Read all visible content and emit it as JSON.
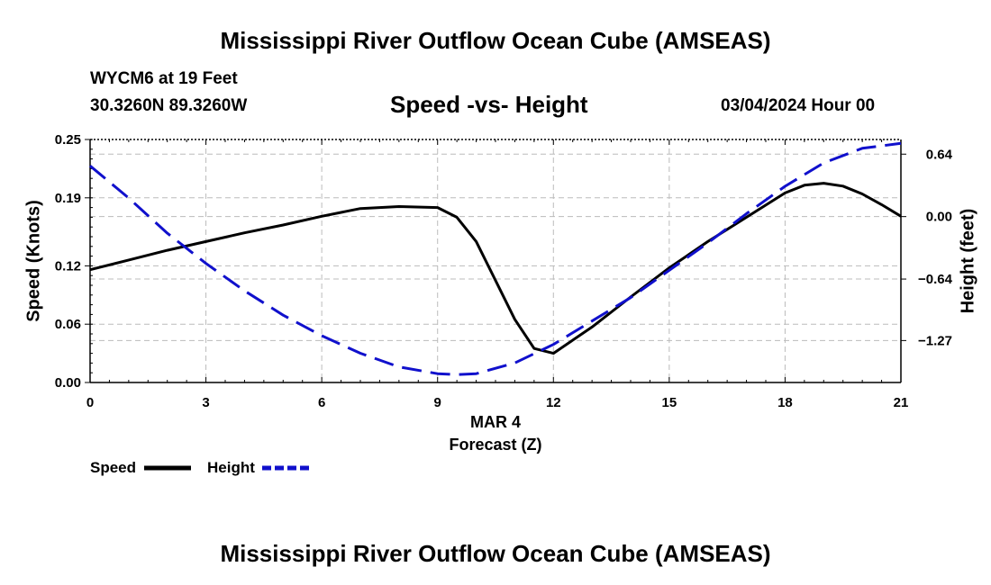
{
  "header": {
    "title": "Mississippi River Outflow Ocean Cube (AMSEAS)",
    "station": "WYCM6 at 19 Feet",
    "coords": "30.3260N  89.3260W",
    "subtitle": "Speed -vs- Height",
    "datetime": "03/04/2024 Hour 00"
  },
  "footer": {
    "title": "Mississippi River Outflow Ocean Cube (AMSEAS)"
  },
  "chart_data": {
    "type": "line",
    "title": "Speed -vs- Height",
    "xlabel_date": "MAR 4",
    "xlabel": "Forecast (Z)",
    "ylabel_left": "Speed (Knots)",
    "ylabel_right": "Height (feet)",
    "xlim": [
      0,
      21
    ],
    "ylim_left": [
      0,
      0.25
    ],
    "ylim_right": [
      -1.7,
      0.79
    ],
    "x_ticks": [
      "0",
      "3",
      "6",
      "9",
      "12",
      "15",
      "18",
      "21"
    ],
    "y_left_ticks": [
      "0.00",
      "0.06",
      "0.12",
      "0.19",
      "0.25"
    ],
    "y_right_ticks": [
      "-1.27",
      "-0.64",
      "0.00",
      "0.64"
    ],
    "grid": true,
    "legend": [
      {
        "name": "Speed",
        "color": "#000000",
        "style": "solid"
      },
      {
        "name": "Height",
        "color": "#1010cc",
        "style": "dashed"
      }
    ],
    "series": [
      {
        "name": "Speed",
        "axis": "left",
        "color": "#000000",
        "x": [
          0,
          1,
          2,
          3,
          4,
          5,
          6,
          7,
          8,
          9,
          9.5,
          10,
          10.5,
          11,
          11.5,
          12,
          13,
          14,
          15,
          16,
          17,
          18,
          18.5,
          19,
          19.5,
          20,
          20.5,
          21
        ],
        "y": [
          0.116,
          0.126,
          0.136,
          0.145,
          0.154,
          0.162,
          0.171,
          0.179,
          0.181,
          0.18,
          0.17,
          0.145,
          0.105,
          0.065,
          0.035,
          0.03,
          0.057,
          0.088,
          0.118,
          0.145,
          0.17,
          0.195,
          0.203,
          0.205,
          0.202,
          0.194,
          0.183,
          0.171
        ]
      },
      {
        "name": "Height",
        "axis": "right",
        "color": "#1010cc",
        "x": [
          0,
          1,
          2,
          3,
          4,
          5,
          6,
          7,
          8,
          9,
          9.5,
          10,
          11,
          12,
          13,
          14,
          15,
          16,
          17,
          18,
          19,
          20,
          21
        ],
        "y": [
          0.52,
          0.19,
          -0.17,
          -0.48,
          -0.76,
          -1.01,
          -1.22,
          -1.4,
          -1.54,
          -1.61,
          -1.62,
          -1.61,
          -1.5,
          -1.31,
          -1.07,
          -0.83,
          -0.55,
          -0.27,
          0.03,
          0.31,
          0.55,
          0.7,
          0.75
        ]
      }
    ]
  }
}
